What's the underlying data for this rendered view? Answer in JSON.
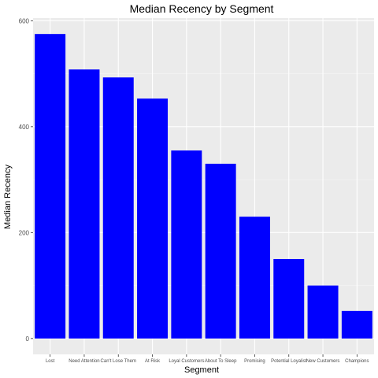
{
  "chart_data": {
    "type": "bar",
    "title": "Median Recency  by Segment",
    "xlabel": "Segment",
    "ylabel": "Median Recency",
    "categories": [
      "Lost",
      "Need Attention",
      "Can't Lose Them",
      "At Risk",
      "Loyal Customers",
      "About To Sleep",
      "Promising",
      "Potential Loyalist",
      "New Customers",
      "Champions"
    ],
    "values": [
      575,
      508,
      493,
      453,
      355,
      330,
      230,
      150,
      100,
      52
    ],
    "ylim": [
      0,
      600
    ],
    "yticks": [
      0,
      200,
      400,
      600
    ],
    "bar_color": "#0000ff",
    "panel_color": "#ebebeb",
    "grid": true
  }
}
